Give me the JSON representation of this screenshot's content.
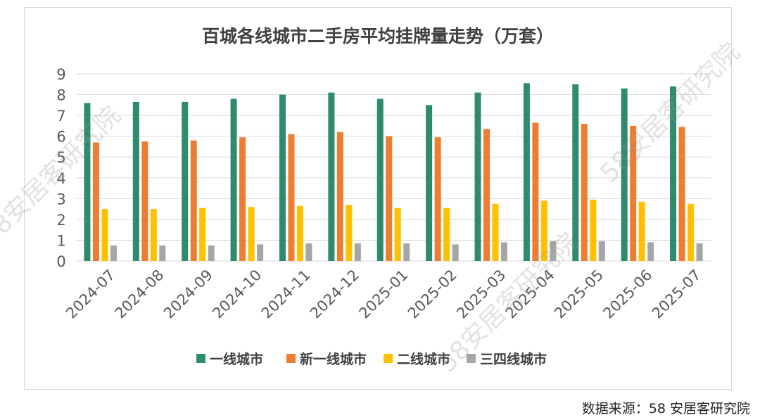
{
  "source_note": "数据来源：58 安居客研究院",
  "watermark_text": "58安居客研究院",
  "chart_data": {
    "type": "bar",
    "title": "百城各线城市二手房平均挂牌量走势（万套）",
    "xlabel": "",
    "ylabel": "",
    "ylim": [
      0,
      9
    ],
    "yticks": [
      "0",
      "1",
      "2",
      "3",
      "4",
      "5",
      "6",
      "7",
      "8",
      "9"
    ],
    "grid": true,
    "legend_position": "bottom",
    "categories": [
      "2024-07",
      "2024-08",
      "2024-09",
      "2024-10",
      "2024-11",
      "2024-12",
      "2025-01",
      "2025-02",
      "2025-03",
      "2025-04",
      "2025-05",
      "2025-06",
      "2025-07"
    ],
    "series": [
      {
        "name": "一线城市",
        "color": "#2e8b6e",
        "values": [
          7.6,
          7.65,
          7.65,
          7.8,
          8.0,
          8.1,
          7.8,
          7.5,
          8.1,
          8.55,
          8.5,
          8.3,
          8.4
        ]
      },
      {
        "name": "新一线城市",
        "color": "#ed7d31",
        "values": [
          5.7,
          5.75,
          5.8,
          5.95,
          6.1,
          6.2,
          6.0,
          5.95,
          6.35,
          6.65,
          6.6,
          6.5,
          6.45
        ]
      },
      {
        "name": "二线城市",
        "color": "#ffc000",
        "values": [
          2.5,
          2.5,
          2.55,
          2.6,
          2.65,
          2.7,
          2.55,
          2.55,
          2.75,
          2.9,
          2.95,
          2.85,
          2.75
        ]
      },
      {
        "name": "三四线城市",
        "color": "#a6a6a6",
        "values": [
          0.75,
          0.75,
          0.75,
          0.8,
          0.85,
          0.85,
          0.85,
          0.8,
          0.9,
          0.95,
          0.95,
          0.9,
          0.85
        ]
      }
    ]
  }
}
